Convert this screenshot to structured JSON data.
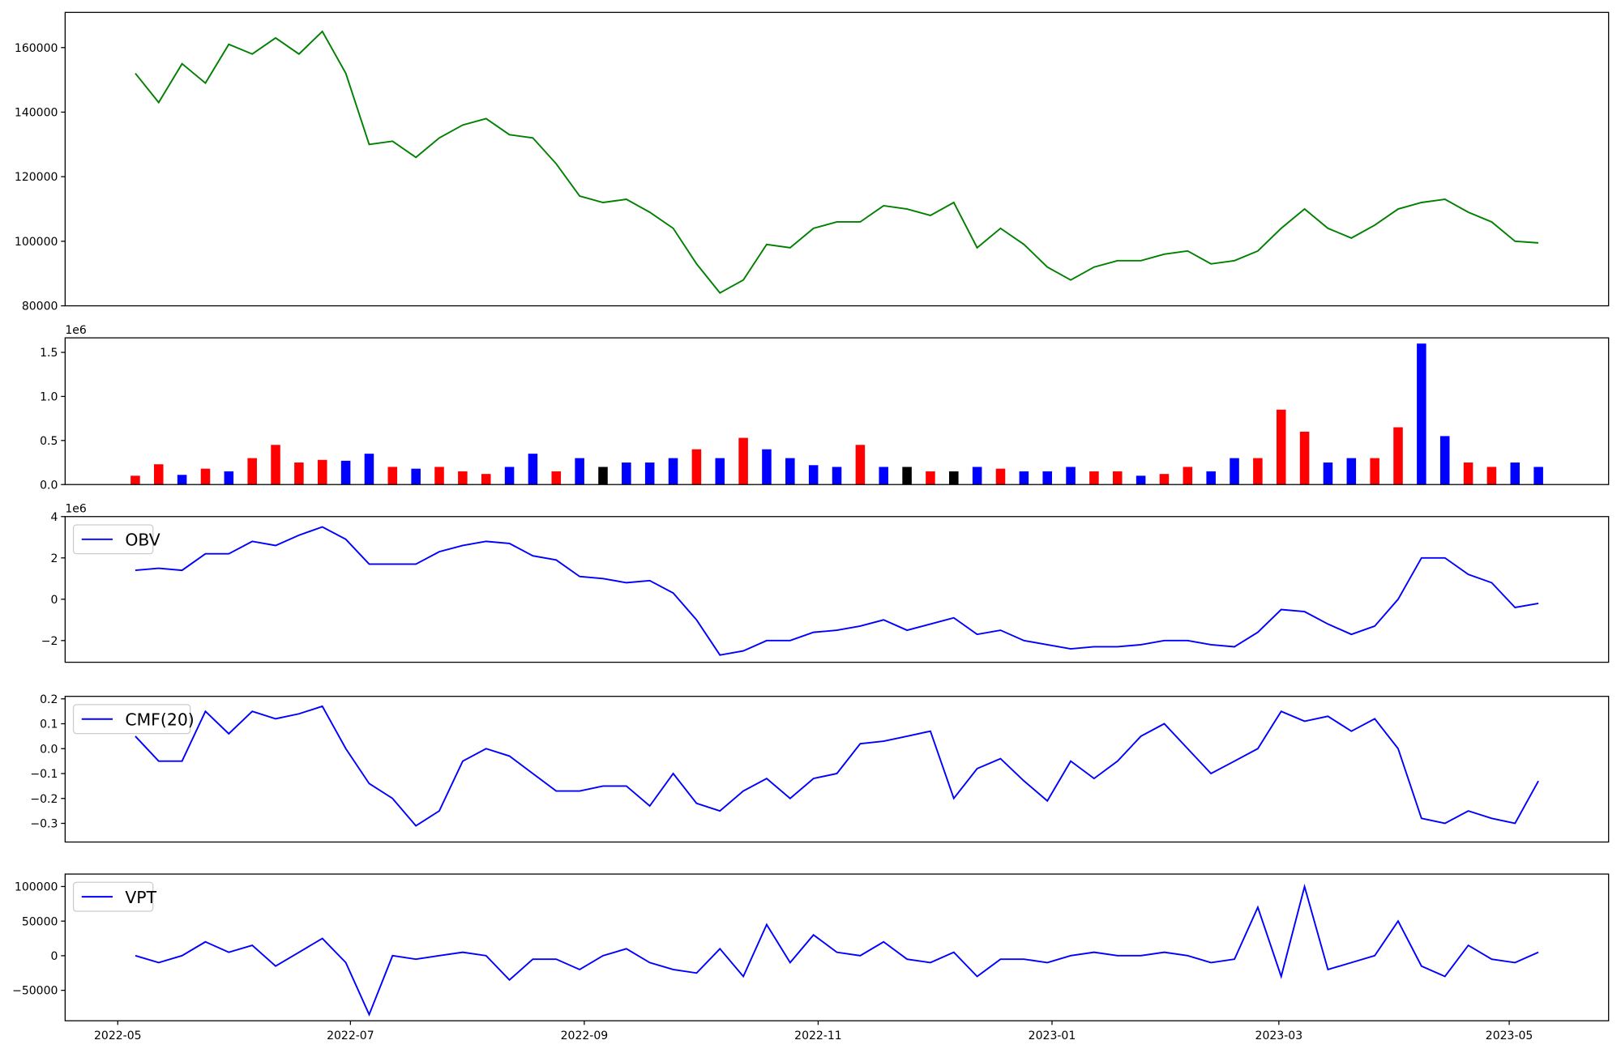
{
  "chart_data": [
    {
      "type": "line",
      "color": "#008000",
      "xlim": [
        -3,
        63
      ],
      "ylim": [
        80000,
        170900
      ],
      "yticks": [
        80000,
        100000,
        120000,
        140000,
        160000
      ],
      "values": [
        152000,
        143000,
        155000,
        149000,
        161000,
        158000,
        163000,
        158000,
        165000,
        152000,
        130000,
        131000,
        126000,
        132000,
        136000,
        138000,
        133000,
        132000,
        124000,
        114000,
        112000,
        113000,
        109000,
        104000,
        93000,
        84000,
        88000,
        99000,
        98000,
        104000,
        106000,
        106000,
        111000,
        110000,
        108000,
        112000,
        98000,
        104000,
        99000,
        92000,
        88000,
        92000,
        94000,
        94000,
        96000,
        97000,
        93000,
        94000,
        97000,
        104000,
        110000,
        104000,
        101000,
        105000,
        110000,
        112000,
        113000,
        109000,
        106000,
        100000,
        99500
      ]
    },
    {
      "type": "bar",
      "xlim": [
        -3,
        63
      ],
      "ylim": [
        0,
        1665000
      ],
      "y_offset_label": "1e6",
      "yticks": [
        {
          "value": 0,
          "label": "0.0"
        },
        {
          "value": 500000,
          "label": "0.5"
        },
        {
          "value": 1000000,
          "label": "1.0"
        },
        {
          "value": 1500000,
          "label": "1.5"
        }
      ],
      "values": [
        100000,
        230000,
        110000,
        180000,
        150000,
        300000,
        450000,
        250000,
        280000,
        270000,
        350000,
        200000,
        180000,
        200000,
        150000,
        120000,
        200000,
        350000,
        150000,
        300000,
        200000,
        250000,
        250000,
        300000,
        400000,
        300000,
        530000,
        400000,
        300000,
        220000,
        200000,
        450000,
        200000,
        200000,
        150000,
        150000,
        200000,
        180000,
        150000,
        150000,
        200000,
        150000,
        150000,
        100000,
        120000,
        200000,
        150000,
        300000,
        300000,
        850000,
        600000,
        250000,
        300000,
        300000,
        650000,
        1600000,
        550000,
        250000,
        200000,
        250000,
        200000
      ],
      "colors": [
        "red",
        "red",
        "blue",
        "red",
        "blue",
        "red",
        "red",
        "red",
        "red",
        "blue",
        "blue",
        "red",
        "blue",
        "red",
        "red",
        "red",
        "blue",
        "blue",
        "red",
        "blue",
        "black",
        "blue",
        "blue",
        "blue",
        "red",
        "blue",
        "red",
        "blue",
        "blue",
        "blue",
        "blue",
        "red",
        "blue",
        "black",
        "red",
        "black",
        "blue",
        "red",
        "blue",
        "blue",
        "blue",
        "red",
        "red",
        "blue",
        "red",
        "red",
        "blue",
        "blue",
        "red",
        "red",
        "red",
        "blue",
        "blue",
        "red",
        "red",
        "blue",
        "blue",
        "red",
        "red",
        "blue",
        "blue"
      ]
    },
    {
      "type": "line",
      "xlim": [
        -3,
        63
      ],
      "ylim": [
        -3050000,
        4000000
      ],
      "y_offset_label": "1e6",
      "legend": "upper left",
      "yticks": [
        {
          "value": -2000000,
          "label": "−2"
        },
        0,
        {
          "value": 2000000,
          "label": "2"
        },
        {
          "value": 4000000,
          "label": "4"
        }
      ],
      "series": [
        {
          "name": "OBV",
          "color": "blue",
          "values": [
            1400000,
            1500000,
            1400000,
            2200000,
            2200000,
            2800000,
            2600000,
            3100000,
            3500000,
            2900000,
            1700000,
            1700000,
            1700000,
            2300000,
            2600000,
            2800000,
            2700000,
            2100000,
            1900000,
            1100000,
            1000000,
            800000,
            900000,
            300000,
            -1000000,
            -2700000,
            -2500000,
            -2000000,
            -2000000,
            -1600000,
            -1500000,
            -1300000,
            -1000000,
            -1500000,
            -1200000,
            -900000,
            -1700000,
            -1500000,
            -2000000,
            -2200000,
            -2400000,
            -2300000,
            -2300000,
            -2200000,
            -2000000,
            -2000000,
            -2200000,
            -2300000,
            -1600000,
            -500000,
            -600000,
            -1200000,
            -1700000,
            -1300000,
            0,
            2000000,
            2000000,
            1200000,
            800000,
            -400000,
            -200000
          ]
        }
      ]
    },
    {
      "type": "line",
      "xlim": [
        -3,
        63
      ],
      "ylim": [
        -0.375,
        0.21
      ],
      "legend": "upper left",
      "yticks": [
        {
          "value": -0.3,
          "label": "−0.3"
        },
        {
          "value": -0.2,
          "label": "−0.2"
        },
        {
          "value": -0.1,
          "label": "−0.1"
        },
        {
          "value": 0,
          "label": "0.0"
        },
        0.1,
        0.2
      ],
      "series": [
        {
          "name": "CMF(20)",
          "color": "blue",
          "values": [
            0.05,
            -0.05,
            -0.05,
            0.15,
            0.06,
            0.15,
            0.12,
            0.14,
            0.17,
            0.0,
            -0.14,
            -0.2,
            -0.31,
            -0.25,
            -0.05,
            0.0,
            -0.03,
            -0.1,
            -0.17,
            -0.17,
            -0.15,
            -0.15,
            -0.23,
            -0.1,
            -0.22,
            -0.25,
            -0.17,
            -0.12,
            -0.2,
            -0.12,
            -0.1,
            0.02,
            0.03,
            0.05,
            0.07,
            -0.2,
            -0.08,
            -0.04,
            -0.13,
            -0.21,
            -0.05,
            -0.12,
            -0.05,
            0.05,
            0.1,
            0.0,
            -0.1,
            -0.05,
            0.0,
            0.15,
            0.11,
            0.13,
            0.07,
            0.12,
            0.0,
            -0.28,
            -0.3,
            -0.25,
            -0.28,
            -0.3,
            -0.13
          ]
        }
      ]
    },
    {
      "type": "line",
      "xlim": [
        -3,
        63
      ],
      "ylim": [
        -94000,
        118000
      ],
      "legend": "upper left",
      "yticks": [
        {
          "value": -50000,
          "label": "−50000"
        },
        0,
        50000,
        100000
      ],
      "xticks": [
        {
          "value": -0.75,
          "label": "2022-05"
        },
        {
          "value": 9.2,
          "label": "2022-07"
        },
        {
          "value": 19.2,
          "label": "2022-09"
        },
        {
          "value": 29.2,
          "label": "2022-11"
        },
        {
          "value": 39.2,
          "label": "2023-01"
        },
        {
          "value": 48.9,
          "label": "2023-03"
        },
        {
          "value": 58.75,
          "label": "2023-05"
        }
      ],
      "series": [
        {
          "name": "VPT",
          "color": "blue",
          "values": [
            0,
            -10000,
            0,
            20000,
            5000,
            15000,
            -15000,
            5000,
            25000,
            -10000,
            -85000,
            0,
            -5000,
            0,
            5000,
            0,
            -35000,
            -5000,
            -5000,
            -20000,
            0,
            10000,
            -10000,
            -20000,
            -25000,
            10000,
            -30000,
            45000,
            -10000,
            30000,
            5000,
            0,
            20000,
            -5000,
            -10000,
            5000,
            -30000,
            -5000,
            -5000,
            -10000,
            0,
            5000,
            0,
            0,
            5000,
            0,
            -10000,
            -5000,
            70000,
            -30000,
            100000,
            -20000,
            -10000,
            0,
            50000,
            -15000,
            -30000,
            15000,
            -5000,
            -10000,
            5000
          ]
        }
      ]
    }
  ]
}
